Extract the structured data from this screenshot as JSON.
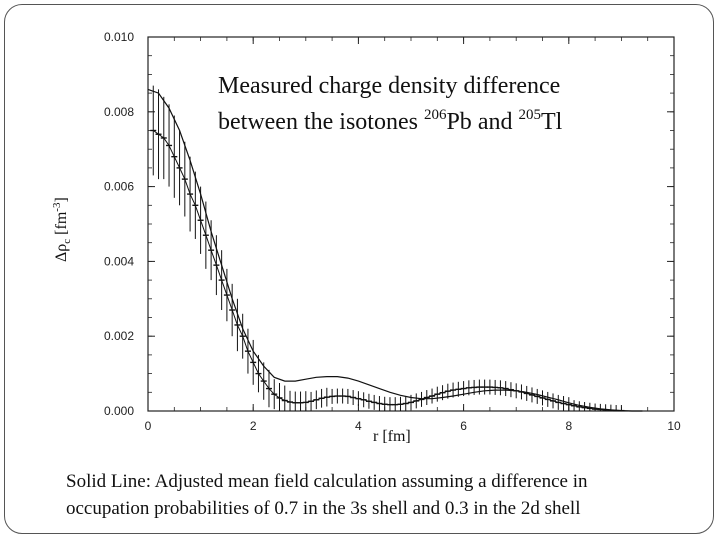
{
  "slide": {
    "caption_line1": "Solid Line: Adjusted mean field calculation assuming a difference in",
    "caption_line2": "occupation probabilities of 0.7 in the 3s shell and 0.3 in the 2d shell"
  },
  "chart_data": {
    "type": "line",
    "title_line1": "Measured charge density difference",
    "title_line2_prefix": "between the isotones ",
    "title_iso1_mass": "206",
    "title_iso1_sym": "Pb",
    "title_and": " and ",
    "title_iso2_mass": "205",
    "title_iso2_sym": "Tl",
    "xlabel": "r [fm]",
    "ylabel_prefix": "Δρ",
    "ylabel_sub": "c",
    "ylabel_unit": " [fm",
    "ylabel_exp": "-3",
    "ylabel_close": "]",
    "xlim": [
      0,
      10
    ],
    "ylim": [
      0,
      0.01
    ],
    "x_ticks": [
      0,
      2,
      4,
      6,
      8,
      10
    ],
    "x_tick_labels": [
      "0",
      "2",
      "4",
      "6",
      "8",
      "10"
    ],
    "y_ticks": [
      0,
      0.002,
      0.004,
      0.006,
      0.008,
      0.01
    ],
    "y_tick_labels": [
      "0.000",
      "0.002",
      "0.004",
      "0.006",
      "0.008",
      "0.010"
    ],
    "series": [
      {
        "role": "calculation",
        "style": "solid",
        "x": [
          0,
          0.2,
          0.4,
          0.6,
          0.8,
          1.0,
          1.2,
          1.4,
          1.6,
          1.8,
          2.0,
          2.2,
          2.4,
          2.6,
          2.8,
          3.0,
          3.2,
          3.4,
          3.6,
          3.8,
          4.0,
          4.2,
          4.4,
          4.6,
          4.8,
          5.0,
          5.2,
          5.4,
          5.6,
          5.8,
          6.0,
          6.2,
          6.4,
          6.6,
          6.8,
          7.0,
          7.2,
          7.4,
          7.6,
          7.8,
          8.0,
          8.2,
          8.4,
          8.6,
          8.8,
          9.0,
          9.2,
          9.4
        ],
        "y": [
          0.0086,
          0.0085,
          0.0081,
          0.0075,
          0.0067,
          0.0058,
          0.0048,
          0.0039,
          0.003,
          0.0022,
          0.0016,
          0.0012,
          0.0009,
          0.0008,
          0.0008,
          0.00085,
          0.0009,
          0.00092,
          0.00092,
          0.00088,
          0.0008,
          0.0007,
          0.0006,
          0.0005,
          0.00042,
          0.00036,
          0.00033,
          0.00033,
          0.00036,
          0.0004,
          0.00045,
          0.0005,
          0.00054,
          0.00056,
          0.00056,
          0.00054,
          0.0005,
          0.00044,
          0.00037,
          0.0003,
          0.00022,
          0.00015,
          0.0001,
          6e-05,
          3e-05,
          1e-05,
          0.0,
          0.0
        ]
      },
      {
        "role": "measurement",
        "style": "crosses with error bars",
        "x": [
          0.1,
          0.2,
          0.3,
          0.4,
          0.5,
          0.6,
          0.7,
          0.8,
          0.9,
          1.0,
          1.1,
          1.2,
          1.3,
          1.4,
          1.5,
          1.6,
          1.7,
          1.8,
          1.9,
          2.0,
          2.1,
          2.2,
          2.3,
          2.4,
          2.5,
          2.6,
          2.7,
          2.8,
          2.9,
          3.0,
          3.1,
          3.2,
          3.3,
          3.4,
          3.5,
          3.6,
          3.7,
          3.8,
          3.9,
          4.0,
          4.1,
          4.2,
          4.3,
          4.4,
          4.5,
          4.6,
          4.7,
          4.8,
          4.9,
          5.0,
          5.1,
          5.2,
          5.3,
          5.4,
          5.5,
          5.6,
          5.7,
          5.8,
          5.9,
          6.0,
          6.1,
          6.2,
          6.3,
          6.4,
          6.5,
          6.6,
          6.7,
          6.8,
          6.9,
          7.0,
          7.1,
          7.2,
          7.3,
          7.4,
          7.5,
          7.6,
          7.7,
          7.8,
          7.9,
          8.0,
          8.1,
          8.2,
          8.3,
          8.4,
          8.5,
          8.6,
          8.7,
          8.8,
          8.9,
          9.0
        ],
        "y": [
          0.0075,
          0.0074,
          0.0073,
          0.0071,
          0.0068,
          0.0065,
          0.0062,
          0.0058,
          0.0055,
          0.0051,
          0.0047,
          0.0043,
          0.0039,
          0.0035,
          0.0031,
          0.0027,
          0.0023,
          0.002,
          0.0016,
          0.0013,
          0.001,
          0.0008,
          0.0006,
          0.00045,
          0.00035,
          0.00028,
          0.00024,
          0.00022,
          0.00022,
          0.00023,
          0.00026,
          0.0003,
          0.00034,
          0.00037,
          0.00039,
          0.0004,
          0.0004,
          0.00039,
          0.00036,
          0.00033,
          0.0003,
          0.00026,
          0.00023,
          0.0002,
          0.00018,
          0.00017,
          0.00017,
          0.00018,
          0.0002,
          0.00023,
          0.00027,
          0.00031,
          0.00036,
          0.0004,
          0.00045,
          0.00049,
          0.00053,
          0.00056,
          0.00058,
          0.0006,
          0.00062,
          0.00063,
          0.00064,
          0.00064,
          0.00064,
          0.00063,
          0.00062,
          0.0006,
          0.00057,
          0.00054,
          0.00051,
          0.00047,
          0.00043,
          0.00039,
          0.00035,
          0.00031,
          0.00027,
          0.00023,
          0.0002,
          0.00017,
          0.00014,
          0.00011,
          9e-05,
          7e-05,
          5e-05,
          4e-05,
          3e-05,
          2e-05,
          1e-05,
          1e-05
        ],
        "err": [
          0.0012,
          0.0012,
          0.0011,
          0.0011,
          0.0011,
          0.001,
          0.001,
          0.001,
          0.0009,
          0.0009,
          0.0009,
          0.0008,
          0.0008,
          0.0008,
          0.0007,
          0.0007,
          0.0007,
          0.0006,
          0.0006,
          0.0006,
          0.0005,
          0.0005,
          0.0005,
          0.0004,
          0.0004,
          0.0004,
          0.0003,
          0.0003,
          0.0003,
          0.0003,
          0.00025,
          0.00025,
          0.00025,
          0.00025,
          0.0002,
          0.0002,
          0.0002,
          0.0002,
          0.0002,
          0.0002,
          0.0002,
          0.0002,
          0.0002,
          0.0002,
          0.0002,
          0.0002,
          0.0002,
          0.0002,
          0.0002,
          0.0002,
          0.0002,
          0.0002,
          0.0002,
          0.0002,
          0.0002,
          0.0002,
          0.0002,
          0.0002,
          0.0002,
          0.0002,
          0.0002,
          0.0002,
          0.0002,
          0.0002,
          0.0002,
          0.0002,
          0.0002,
          0.0002,
          0.0002,
          0.0002,
          0.0002,
          0.0002,
          0.0002,
          0.0002,
          0.0002,
          0.0002,
          0.0002,
          0.0002,
          0.0002,
          0.0002,
          0.00015,
          0.00015,
          0.00015,
          0.00015,
          0.00015,
          0.00015,
          0.00015,
          0.00015,
          0.00015,
          0.00015
        ]
      }
    ],
    "grid": false,
    "legend": "none"
  }
}
